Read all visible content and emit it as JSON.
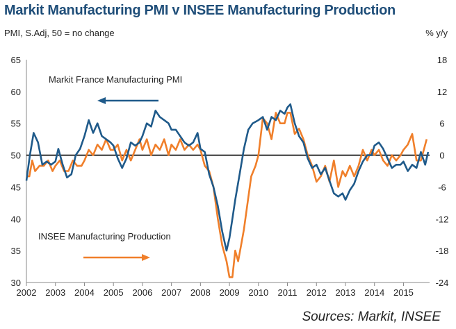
{
  "title": "Markit Manufacturing PMI v INSEE Manufacturing Production",
  "left_axis_label": "PMI, S.Adj, 50 = no change",
  "right_axis_label": "% y/y",
  "source": "Sources: Markit, INSEE",
  "colors": {
    "pmi": "#1f5a8a",
    "production": "#f07f2a",
    "title": "#1f4e79",
    "zero_line": "#000000"
  },
  "chart_data": {
    "type": "line",
    "title": "Markit Manufacturing PMI v INSEE Manufacturing Production",
    "x_range": [
      2002,
      2015.9
    ],
    "x_ticks": [
      "2002",
      "2003",
      "2004",
      "2005",
      "2006",
      "2007",
      "2008",
      "2009",
      "2010",
      "2011",
      "2012",
      "2013",
      "2014",
      "2015"
    ],
    "left_axis": {
      "label": "PMI, S.Adj, 50 = no change",
      "ylim": [
        30,
        65
      ],
      "ticks": [
        30,
        35,
        40,
        45,
        50,
        55,
        60,
        65
      ]
    },
    "right_axis": {
      "label": "% y/y",
      "ylim": [
        -24,
        18
      ],
      "ticks": [
        -24,
        -18,
        -12,
        -6,
        0,
        6,
        12,
        18
      ]
    },
    "annotations": [
      {
        "text": "Markit France Manufacturing PMI",
        "arrow": "left",
        "series": "pmi"
      },
      {
        "text": "INSEE Manufacturing Production",
        "arrow": "right",
        "series": "production"
      }
    ],
    "series": [
      {
        "name": "Markit France Manufacturing PMI",
        "axis": "left",
        "x": [
          2002.0,
          2002.12,
          2002.25,
          2002.4,
          2002.55,
          2002.7,
          2002.85,
          2003.0,
          2003.1,
          2003.25,
          2003.4,
          2003.55,
          2003.7,
          2003.85,
          2004.0,
          2004.15,
          2004.3,
          2004.45,
          2004.6,
          2004.75,
          2004.9,
          2005.0,
          2005.15,
          2005.3,
          2005.45,
          2005.6,
          2005.75,
          2005.9,
          2006.0,
          2006.15,
          2006.3,
          2006.45,
          2006.6,
          2006.75,
          2006.9,
          2007.0,
          2007.15,
          2007.3,
          2007.45,
          2007.6,
          2007.75,
          2007.9,
          2008.0,
          2008.15,
          2008.3,
          2008.45,
          2008.6,
          2008.75,
          2008.9,
          2009.0,
          2009.1,
          2009.2,
          2009.35,
          2009.5,
          2009.65,
          2009.8,
          2010.0,
          2010.15,
          2010.3,
          2010.45,
          2010.6,
          2010.75,
          2010.9,
          2011.0,
          2011.1,
          2011.25,
          2011.4,
          2011.55,
          2011.7,
          2011.85,
          2012.0,
          2012.15,
          2012.3,
          2012.45,
          2012.6,
          2012.75,
          2012.9,
          2013.0,
          2013.15,
          2013.3,
          2013.45,
          2013.6,
          2013.75,
          2013.9,
          2014.0,
          2014.15,
          2014.3,
          2014.45,
          2014.6,
          2014.75,
          2014.9,
          2015.0,
          2015.15,
          2015.3,
          2015.45,
          2015.6,
          2015.75,
          2015.85
        ],
        "values": [
          46,
          50,
          53.5,
          52,
          48.5,
          49,
          48.5,
          49,
          51,
          48.5,
          46.5,
          47,
          50,
          51,
          53,
          55.5,
          53.5,
          55,
          53,
          52.5,
          52,
          51.5,
          49.5,
          48,
          49.5,
          52,
          51.5,
          52,
          53,
          55,
          54.5,
          57,
          56,
          55.5,
          55,
          54,
          54,
          53,
          52,
          51.5,
          52,
          53.5,
          51,
          50.5,
          47,
          45,
          42,
          38,
          35,
          37,
          40,
          43,
          47,
          51,
          54,
          55,
          55.5,
          56,
          54,
          56,
          55.5,
          57,
          56.5,
          57.5,
          58,
          55,
          53,
          52,
          49.5,
          48,
          48.5,
          47,
          48,
          46,
          44,
          43.5,
          44,
          43,
          44.5,
          45.5,
          47.5,
          49,
          50,
          50,
          51.5,
          52,
          51,
          49.5,
          48,
          48.5,
          48.5,
          49,
          47.5,
          48.5,
          48,
          50.5,
          48.5,
          50.5
        ]
      },
      {
        "name": "INSEE Manufacturing Production",
        "axis": "right",
        "x": [
          2002.0,
          2002.1,
          2002.2,
          2002.3,
          2002.45,
          2002.6,
          2002.75,
          2002.9,
          2003.0,
          2003.15,
          2003.3,
          2003.45,
          2003.6,
          2003.75,
          2003.9,
          2004.0,
          2004.15,
          2004.3,
          2004.45,
          2004.6,
          2004.75,
          2004.9,
          2005.0,
          2005.15,
          2005.3,
          2005.45,
          2005.6,
          2005.75,
          2005.9,
          2006.0,
          2006.15,
          2006.3,
          2006.45,
          2006.6,
          2006.75,
          2006.9,
          2007.0,
          2007.15,
          2007.3,
          2007.45,
          2007.6,
          2007.75,
          2007.9,
          2008.0,
          2008.15,
          2008.3,
          2008.45,
          2008.6,
          2008.75,
          2008.9,
          2009.0,
          2009.1,
          2009.2,
          2009.3,
          2009.4,
          2009.5,
          2009.6,
          2009.75,
          2009.9,
          2010.0,
          2010.15,
          2010.3,
          2010.45,
          2010.6,
          2010.75,
          2010.9,
          2011.0,
          2011.1,
          2011.25,
          2011.4,
          2011.55,
          2011.7,
          2011.85,
          2012.0,
          2012.15,
          2012.3,
          2012.45,
          2012.6,
          2012.75,
          2012.9,
          2013.0,
          2013.15,
          2013.3,
          2013.45,
          2013.6,
          2013.75,
          2013.9,
          2014.0,
          2014.15,
          2014.3,
          2014.45,
          2014.6,
          2014.75,
          2014.9,
          2015.0,
          2015.15,
          2015.3,
          2015.45,
          2015.6,
          2015.7,
          2015.8
        ],
        "values": [
          -4,
          -4,
          -1,
          -3,
          -2,
          -2,
          -1,
          -3,
          -2,
          -1,
          -3,
          -3,
          -1,
          -2,
          -2,
          -1,
          1,
          0,
          2,
          1,
          3,
          1,
          1,
          2,
          -1,
          1,
          -1,
          1,
          3,
          1,
          3,
          0,
          2,
          1,
          3,
          0,
          2,
          1,
          3,
          1,
          2,
          1,
          2,
          1,
          -2,
          -3,
          -6,
          -12,
          -17,
          -20,
          -23,
          -23,
          -18,
          -20,
          -17,
          -14,
          -10,
          -4,
          -2,
          0,
          7,
          6,
          3,
          8,
          6,
          6,
          8,
          8,
          4,
          5,
          3,
          0,
          -2,
          -5,
          -4,
          -2,
          -5,
          -1,
          -6,
          -3,
          -4,
          -2,
          -4,
          -2,
          1,
          -1,
          1,
          0,
          1,
          -1,
          -2,
          0,
          -1,
          0,
          1,
          2,
          4,
          -1,
          -1,
          1,
          3
        ]
      }
    ]
  }
}
